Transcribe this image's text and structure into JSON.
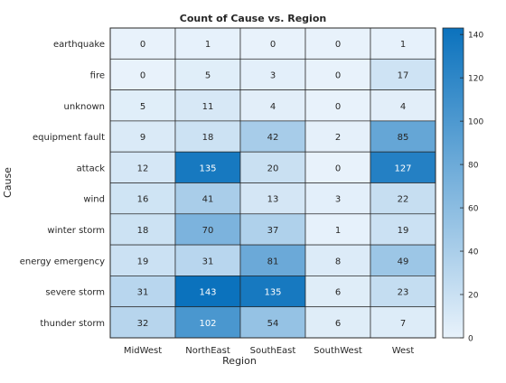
{
  "chart_data": {
    "type": "heatmap",
    "title": "Count of Cause vs. Region",
    "xlabel": "Region",
    "ylabel": "Cause",
    "x_categories": [
      "MidWest",
      "NorthEast",
      "SouthEast",
      "SouthWest",
      "West"
    ],
    "y_categories": [
      "earthquake",
      "fire",
      "unknown",
      "equipment fault",
      "attack",
      "wind",
      "winter storm",
      "energy emergency",
      "severe storm",
      "thunder storm"
    ],
    "values": [
      [
        0,
        1,
        0,
        0,
        1
      ],
      [
        0,
        5,
        3,
        0,
        17
      ],
      [
        5,
        11,
        4,
        0,
        4
      ],
      [
        9,
        18,
        42,
        2,
        85
      ],
      [
        12,
        135,
        20,
        0,
        127
      ],
      [
        16,
        41,
        13,
        3,
        22
      ],
      [
        18,
        70,
        37,
        1,
        19
      ],
      [
        19,
        31,
        81,
        8,
        49
      ],
      [
        31,
        143,
        135,
        6,
        23
      ],
      [
        32,
        102,
        54,
        6,
        7
      ]
    ],
    "colorbar": {
      "min": 0,
      "max": 143,
      "ticks": [
        0,
        20,
        40,
        60,
        80,
        100,
        120,
        140
      ],
      "color_low": "#e8f2fb",
      "color_high": "#0b72bd"
    },
    "grid": true,
    "legend": "colorbar-right"
  }
}
